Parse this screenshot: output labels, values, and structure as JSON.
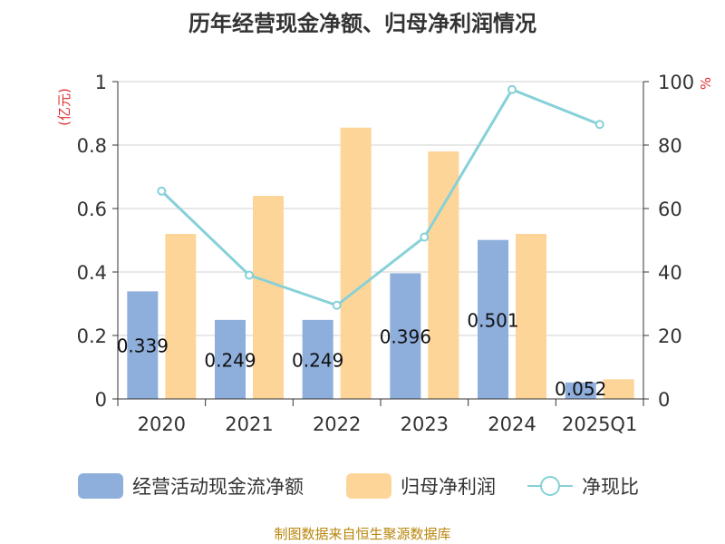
{
  "chart_data": {
    "type": "bar",
    "title": "历年经营现金净额、归母净利润情况",
    "categories": [
      "2020",
      "2021",
      "2022",
      "2023",
      "2024",
      "2025Q1"
    ],
    "left_axis": {
      "unit": "(亿元)",
      "ylim": [
        0,
        1
      ],
      "ticks": [
        "0",
        "0.2",
        "0.4",
        "0.6",
        "0.8",
        "1"
      ]
    },
    "right_axis": {
      "unit": "%",
      "ylim": [
        0,
        100
      ],
      "ticks": [
        "0",
        "20",
        "40",
        "60",
        "80",
        "100"
      ]
    },
    "grid": true,
    "legend_position": "bottom",
    "series": [
      {
        "name": "经营活动现金流净额",
        "kind": "bar",
        "axis": "left",
        "color": "#8eaedc",
        "values": [
          0.339,
          0.249,
          0.249,
          0.396,
          0.501,
          0.052
        ],
        "labels": [
          "0.339",
          "0.249",
          "0.249",
          "0.396",
          "0.501",
          "0.052"
        ]
      },
      {
        "name": "归母净利润",
        "kind": "bar",
        "axis": "left",
        "color": "#fed598",
        "values": [
          0.52,
          0.64,
          0.855,
          0.78,
          0.52,
          0.062
        ]
      },
      {
        "name": "净现比",
        "kind": "line",
        "axis": "right",
        "color": "#86d1d8",
        "values": [
          65.5,
          39,
          29.5,
          51,
          97.5,
          86.5
        ]
      }
    ]
  },
  "source_text": "制图数据来自恒生聚源数据库"
}
